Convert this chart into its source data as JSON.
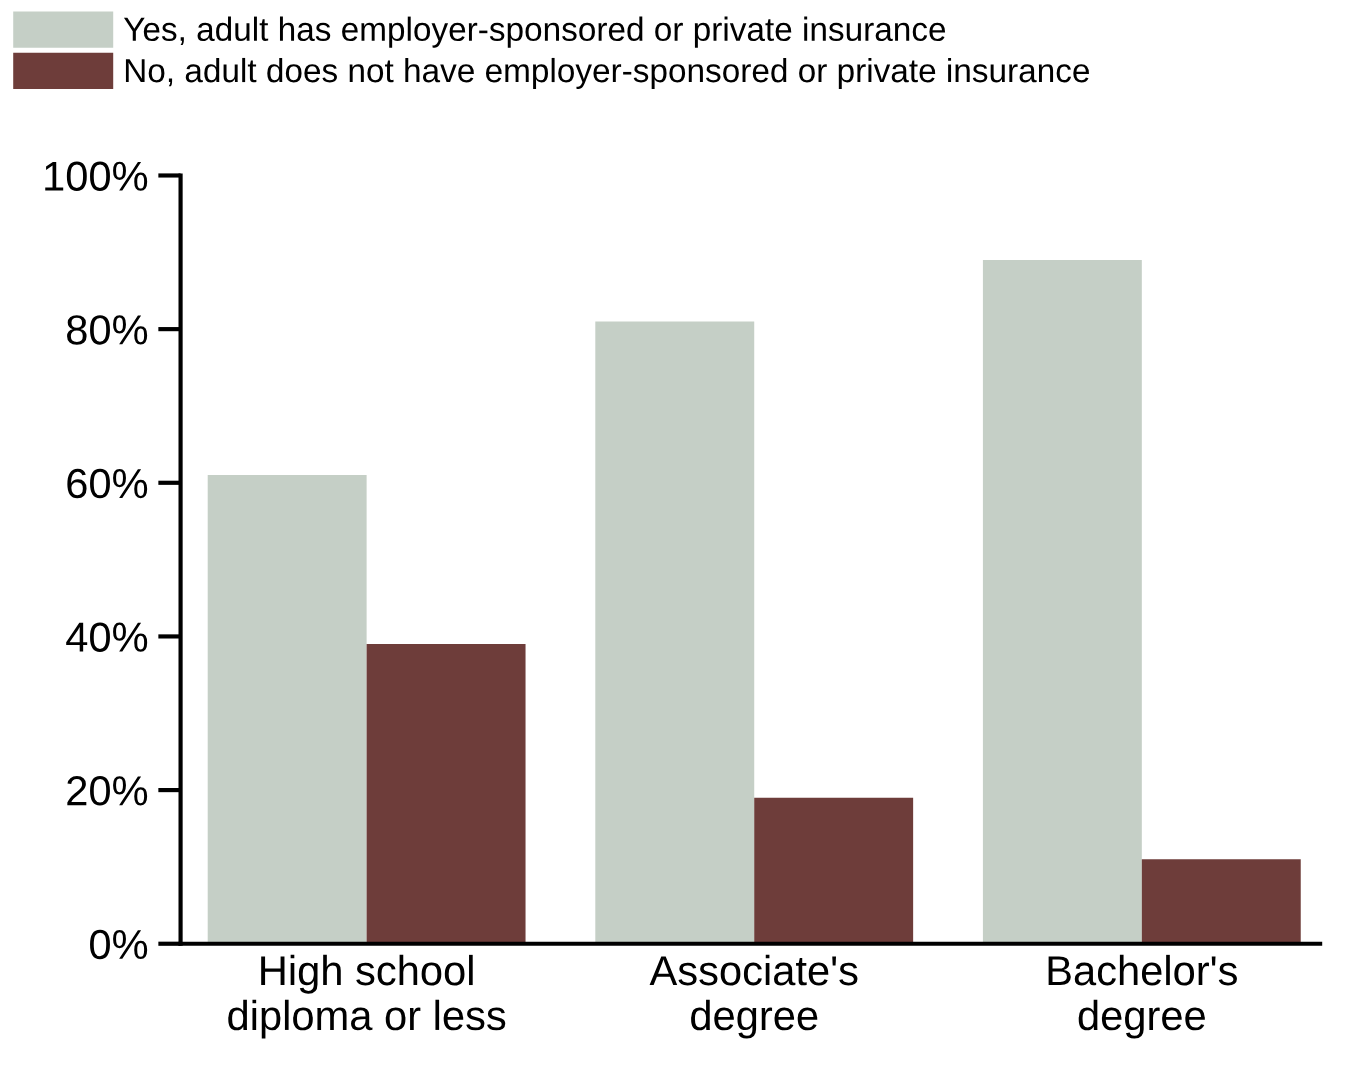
{
  "chart_data": {
    "type": "bar",
    "categories": [
      "High school\ndiploma or less",
      "Associate's\ndegree",
      "Bachelor's\ndegree"
    ],
    "series": [
      {
        "name": "Yes, adult has employer-sponsored or private insurance",
        "color": "#c5cfc6",
        "values": [
          61,
          81,
          89
        ]
      },
      {
        "name": "No, adult does not have employer-sponsored or private insurance",
        "color": "#6e3d3a",
        "values": [
          39,
          19,
          11
        ]
      }
    ],
    "ylim": [
      0,
      100
    ],
    "yticks": [
      {
        "value": 0,
        "label": "0%"
      },
      {
        "value": 20,
        "label": "20%"
      },
      {
        "value": 40,
        "label": "40%"
      },
      {
        "value": 60,
        "label": "60%"
      },
      {
        "value": 80,
        "label": "80%"
      },
      {
        "value": 100,
        "label": "100%"
      }
    ],
    "grid": false,
    "legend": "top left"
  }
}
